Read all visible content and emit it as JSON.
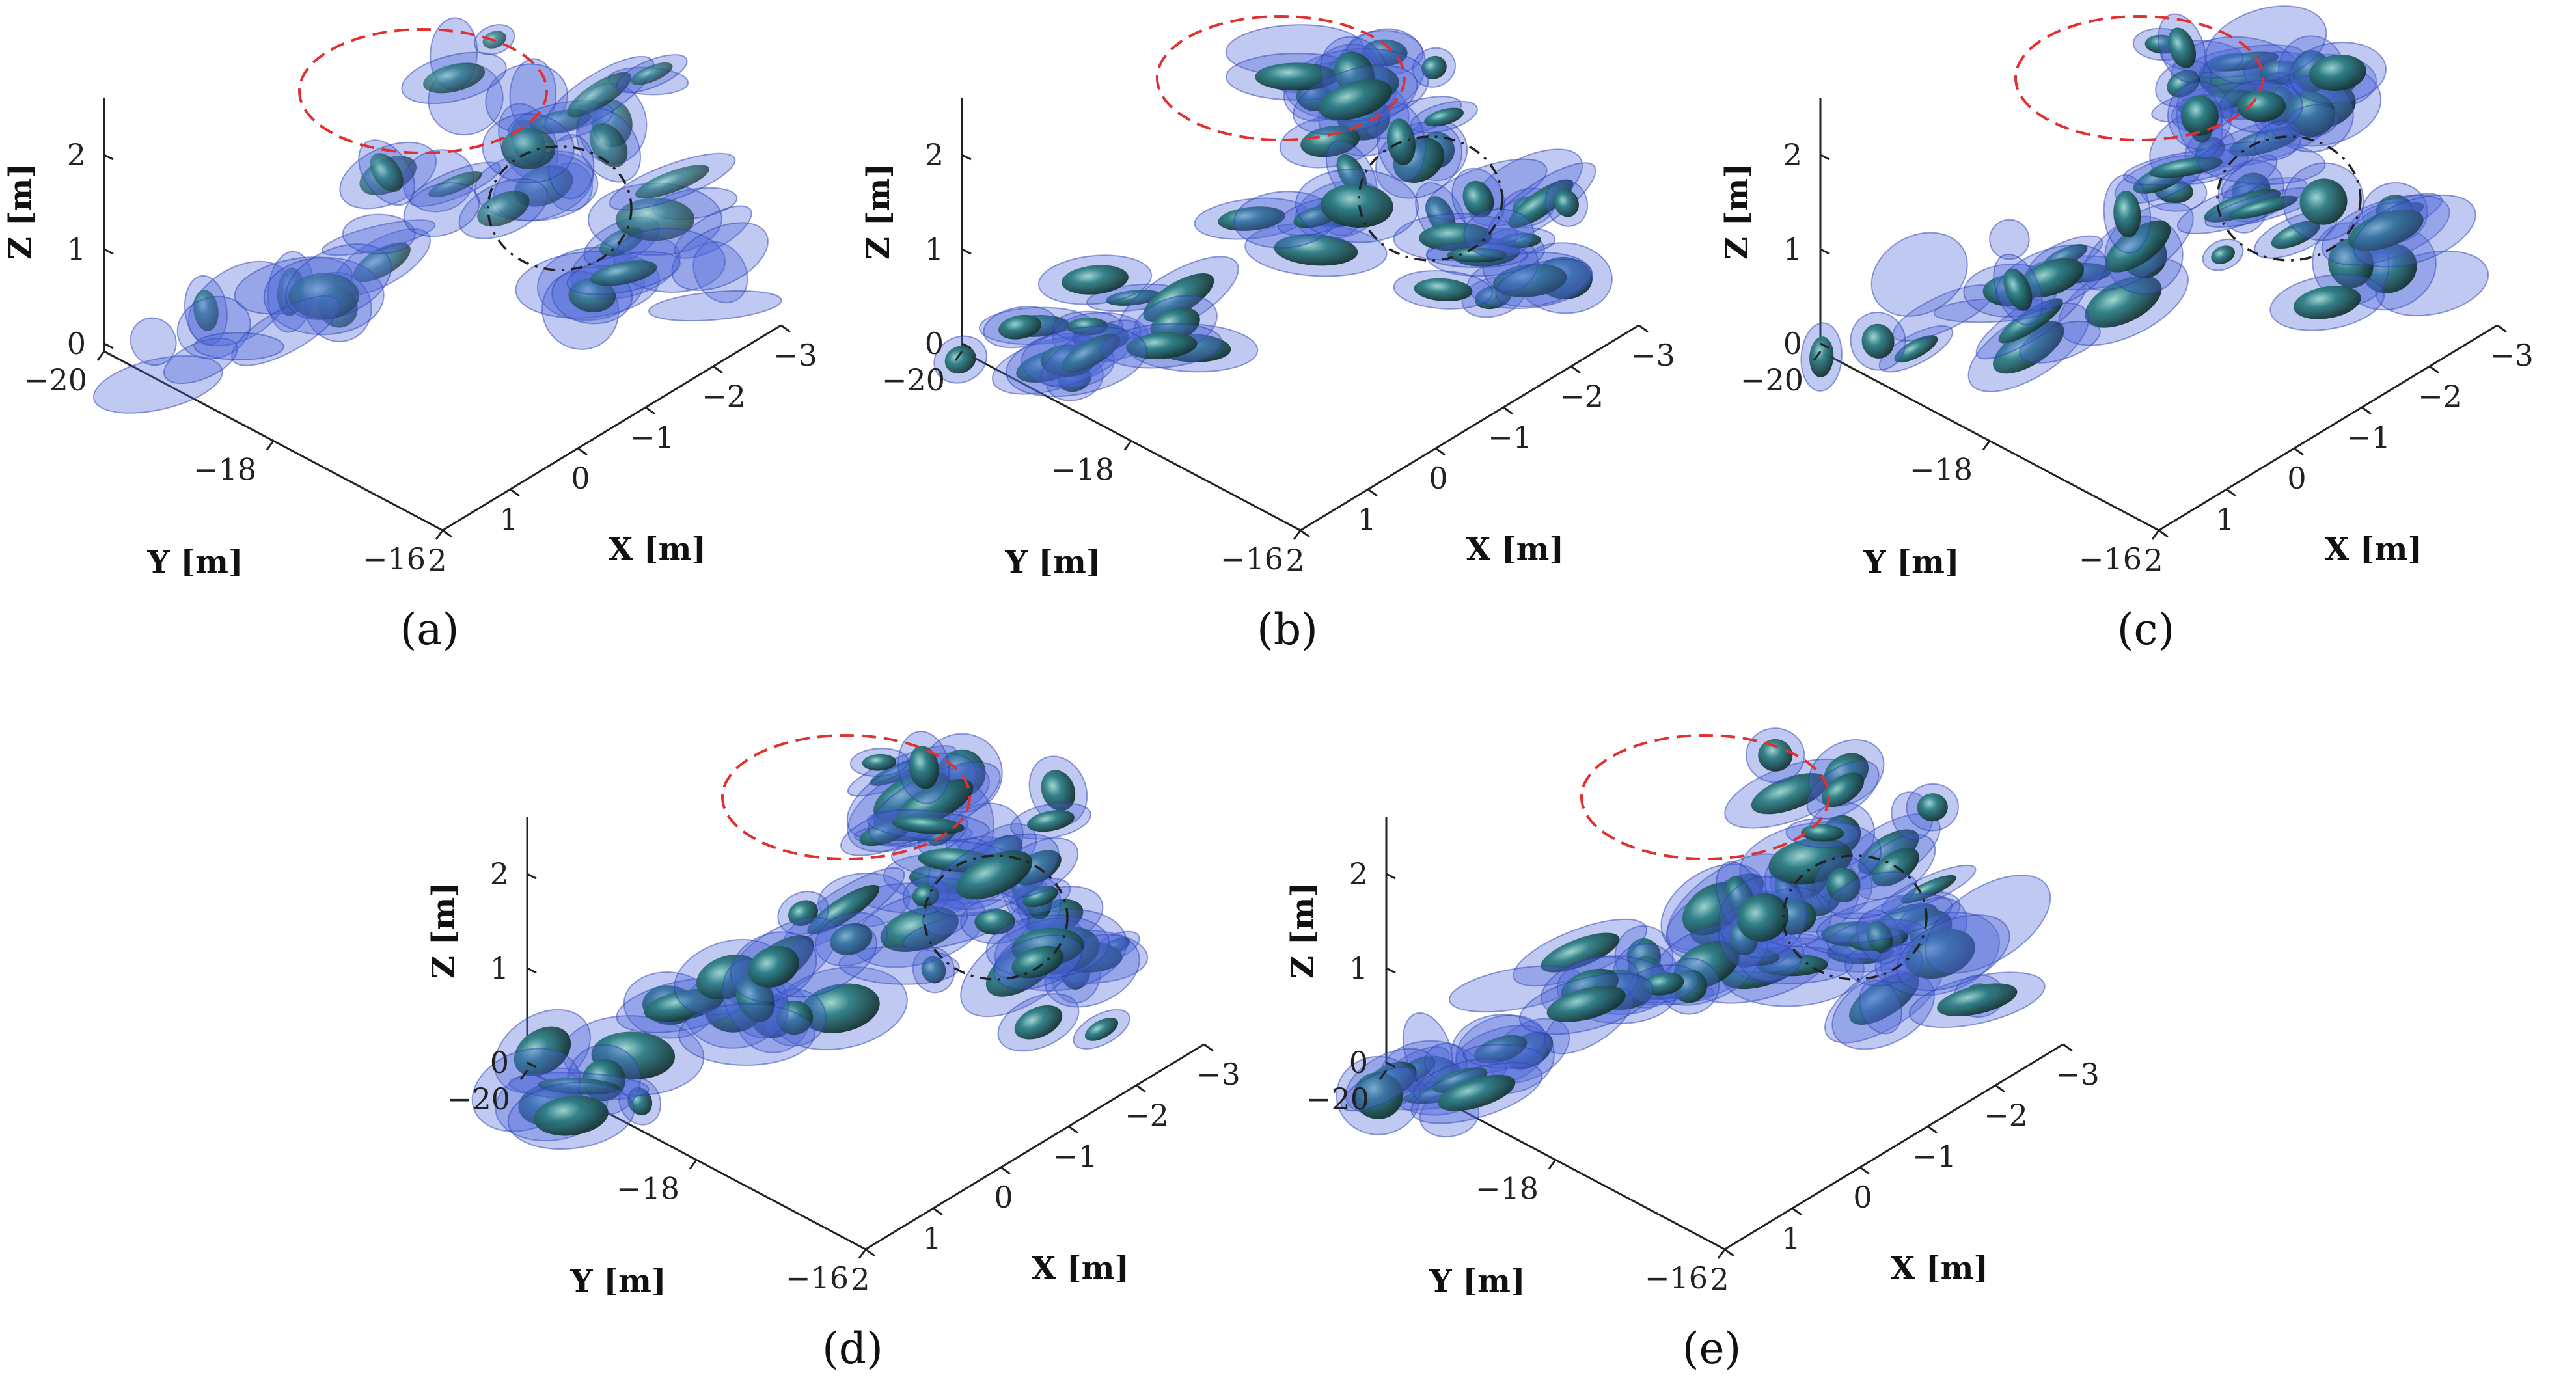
{
  "chart_data": [
    {
      "type": "isosurface-3d",
      "panel_label": "(a)",
      "xlabel": "X [m]",
      "ylabel": "Y [m]",
      "zlabel": "Z [m]",
      "x_ticks": [
        "2",
        "1",
        "0",
        "−1",
        "−2",
        "−3"
      ],
      "y_ticks": [
        "−20",
        "−18",
        "−16"
      ],
      "z_ticks": [
        "0",
        "1",
        "2"
      ],
      "xlim": [
        2,
        -3
      ],
      "ylim": [
        -20,
        -16
      ],
      "zlim": [
        0,
        2.5
      ],
      "annotations": [
        "red dashed ellipse",
        "black dash-dot ellipse"
      ]
    },
    {
      "type": "isosurface-3d",
      "panel_label": "(b)",
      "xlabel": "X [m]",
      "ylabel": "Y [m]",
      "zlabel": "Z [m]",
      "x_ticks": [
        "2",
        "1",
        "0",
        "−1",
        "−2",
        "−3"
      ],
      "y_ticks": [
        "−20",
        "−18",
        "−16"
      ],
      "z_ticks": [
        "0",
        "1",
        "2"
      ],
      "xlim": [
        2,
        -3
      ],
      "ylim": [
        -20,
        -16
      ],
      "zlim": [
        0,
        2.5
      ],
      "annotations": [
        "red dashed ellipse",
        "black dash-dot ellipse"
      ]
    },
    {
      "type": "isosurface-3d",
      "panel_label": "(c)",
      "xlabel": "X [m]",
      "ylabel": "Y [m]",
      "zlabel": "Z [m]",
      "x_ticks": [
        "2",
        "1",
        "0",
        "−1",
        "−2",
        "−3"
      ],
      "y_ticks": [
        "−20",
        "−18",
        "−16"
      ],
      "z_ticks": [
        "0",
        "1",
        "2"
      ],
      "xlim": [
        2,
        -3
      ],
      "ylim": [
        -20,
        -16
      ],
      "zlim": [
        0,
        2.5
      ],
      "annotations": [
        "red dashed ellipse",
        "black dash-dot ellipse"
      ]
    },
    {
      "type": "isosurface-3d",
      "panel_label": "(d)",
      "xlabel": "X [m]",
      "ylabel": "Y [m]",
      "zlabel": "Z [m]",
      "x_ticks": [
        "2",
        "1",
        "0",
        "−1",
        "−2",
        "−3"
      ],
      "y_ticks": [
        "−20",
        "−18",
        "−16"
      ],
      "z_ticks": [
        "0",
        "1",
        "2"
      ],
      "xlim": [
        2,
        -3
      ],
      "ylim": [
        -20,
        -16
      ],
      "zlim": [
        0,
        2.5
      ],
      "annotations": [
        "red dashed ellipse",
        "black dash-dot ellipse"
      ]
    },
    {
      "type": "isosurface-3d",
      "panel_label": "(e)",
      "xlabel": "X [m]",
      "ylabel": "Y [m]",
      "zlabel": "Z [m]",
      "x_ticks": [
        "2",
        "1",
        "0",
        "−1",
        "−2",
        "−3"
      ],
      "y_ticks": [
        "−20",
        "−18",
        "−16"
      ],
      "z_ticks": [
        "0",
        "1",
        "2"
      ],
      "xlim": [
        2,
        -3
      ],
      "ylim": [
        -20,
        -16
      ],
      "zlim": [
        0,
        2.5
      ],
      "annotations": [
        "red dashed ellipse",
        "black dash-dot ellipse"
      ]
    }
  ],
  "colors": {
    "outer_surface": "#4a63d6",
    "inner_surface": "#1f6f7a",
    "core": "#1b3b3a",
    "red_ellipse": "#e03030",
    "black_ellipse": "#222222"
  }
}
